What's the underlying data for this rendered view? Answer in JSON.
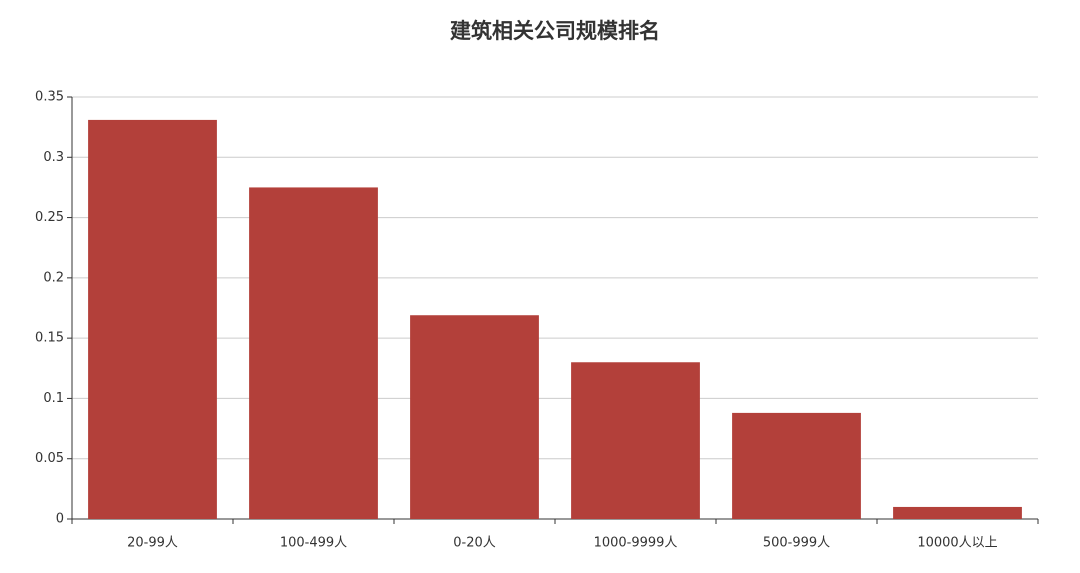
{
  "chart_data": {
    "type": "bar",
    "title": "建筑相关公司规模排名",
    "categories": [
      "20-99人",
      "100-499人",
      "0-20人",
      "1000-9999人",
      "500-999人",
      "10000人以上"
    ],
    "values": [
      0.331,
      0.275,
      0.169,
      0.13,
      0.088,
      0.01
    ],
    "color": "#b3403a",
    "ylim": [
      0,
      0.35
    ],
    "yticks": [
      0,
      0.05,
      0.1,
      0.15,
      0.2,
      0.25,
      0.3,
      0.35
    ],
    "grid": true
  }
}
